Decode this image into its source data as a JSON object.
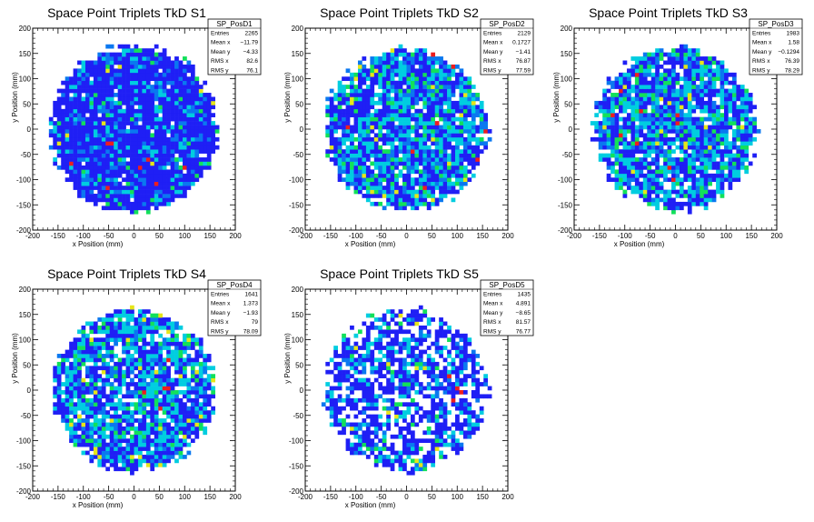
{
  "chart_data": [
    {
      "type": "heatmap",
      "title": "Space Point Triplets TkD S1",
      "xlabel": "x Position (mm)",
      "ylabel": "y Position (mm)",
      "xlim": [
        -200,
        200
      ],
      "ylim": [
        -200,
        200
      ],
      "xticks": [
        -200,
        -150,
        -100,
        -50,
        0,
        50,
        100,
        150,
        200
      ],
      "yticks": [
        -200,
        -150,
        -100,
        -50,
        0,
        50,
        100,
        150,
        200
      ],
      "histogram": "SP_PosD1",
      "stats": [
        {
          "label": "Entries",
          "value": "2265"
        },
        {
          "label": "Mean x",
          "value": "−11.79"
        },
        {
          "label": "Mean y",
          "value": "−4.33"
        },
        {
          "label": "RMS x",
          "value": "82.6"
        },
        {
          "label": "RMS y",
          "value": "76.1"
        }
      ],
      "fill_radius": 165,
      "profile": "dense"
    },
    {
      "type": "heatmap",
      "title": "Space Point Triplets TkD S2",
      "xlabel": "x Position (mm)",
      "ylabel": "y Position (mm)",
      "xlim": [
        -200,
        200
      ],
      "ylim": [
        -200,
        200
      ],
      "xticks": [
        -200,
        -150,
        -100,
        -50,
        0,
        50,
        100,
        150,
        200
      ],
      "yticks": [
        -200,
        -150,
        -100,
        -50,
        0,
        50,
        100,
        150,
        200
      ],
      "histogram": "SP_PosD2",
      "stats": [
        {
          "label": "Entries",
          "value": "2129"
        },
        {
          "label": "Mean x",
          "value": "0.1727"
        },
        {
          "label": "Mean y",
          "value": "−1.41"
        },
        {
          "label": "RMS x",
          "value": "76.87"
        },
        {
          "label": "RMS y",
          "value": "77.59"
        }
      ],
      "fill_radius": 160,
      "profile": "mixed"
    },
    {
      "type": "heatmap",
      "title": "Space Point Triplets TkD S3",
      "xlabel": "x Position (mm)",
      "ylabel": "y Position (mm)",
      "xlim": [
        -200,
        200
      ],
      "ylim": [
        -200,
        200
      ],
      "xticks": [
        -200,
        -150,
        -100,
        -50,
        0,
        50,
        100,
        150,
        200
      ],
      "yticks": [
        -200,
        -150,
        -100,
        -50,
        0,
        50,
        100,
        150,
        200
      ],
      "histogram": "SP_PosD3",
      "stats": [
        {
          "label": "Entries",
          "value": "1983"
        },
        {
          "label": "Mean x",
          "value": "1.58"
        },
        {
          "label": "Mean y",
          "value": "−0.1294"
        },
        {
          "label": "RMS x",
          "value": "76.39"
        },
        {
          "label": "RMS y",
          "value": "78.29"
        }
      ],
      "fill_radius": 160,
      "profile": "mixed"
    },
    {
      "type": "heatmap",
      "title": "Space Point Triplets TkD S4",
      "xlabel": "x Position (mm)",
      "ylabel": "y Position (mm)",
      "xlim": [
        -200,
        200
      ],
      "ylim": [
        -200,
        200
      ],
      "xticks": [
        -200,
        -150,
        -100,
        -50,
        0,
        50,
        100,
        150,
        200
      ],
      "yticks": [
        -200,
        -150,
        -100,
        -50,
        0,
        50,
        100,
        150,
        200
      ],
      "histogram": "SP_PosD4",
      "stats": [
        {
          "label": "Entries",
          "value": "1641"
        },
        {
          "label": "Mean x",
          "value": "1.373"
        },
        {
          "label": "Mean y",
          "value": "−1.93"
        },
        {
          "label": "RMS x",
          "value": "79"
        },
        {
          "label": "RMS y",
          "value": "78.09"
        }
      ],
      "fill_radius": 160,
      "profile": "medium"
    },
    {
      "type": "heatmap",
      "title": "Space Point Triplets TkD S5",
      "xlabel": "x Position (mm)",
      "ylabel": "y Position (mm)",
      "xlim": [
        -200,
        200
      ],
      "ylim": [
        -200,
        200
      ],
      "xticks": [
        -200,
        -150,
        -100,
        -50,
        0,
        50,
        100,
        150,
        200
      ],
      "yticks": [
        -200,
        -150,
        -100,
        -50,
        0,
        50,
        100,
        150,
        200
      ],
      "histogram": "SP_PosD5",
      "stats": [
        {
          "label": "Entries",
          "value": "1435"
        },
        {
          "label": "Mean x",
          "value": "4.891"
        },
        {
          "label": "Mean y",
          "value": "−8.65"
        },
        {
          "label": "RMS x",
          "value": "81.57"
        },
        {
          "label": "RMS y",
          "value": "76.77"
        }
      ],
      "fill_radius": 160,
      "profile": "sparse"
    }
  ],
  "palette": {
    "low": "#1f1ff5",
    "mid_low": "#0a78f0",
    "mid": "#00cde0",
    "mid_high": "#12e05a",
    "high": "#e6e619",
    "max": "#ee1e1e"
  }
}
